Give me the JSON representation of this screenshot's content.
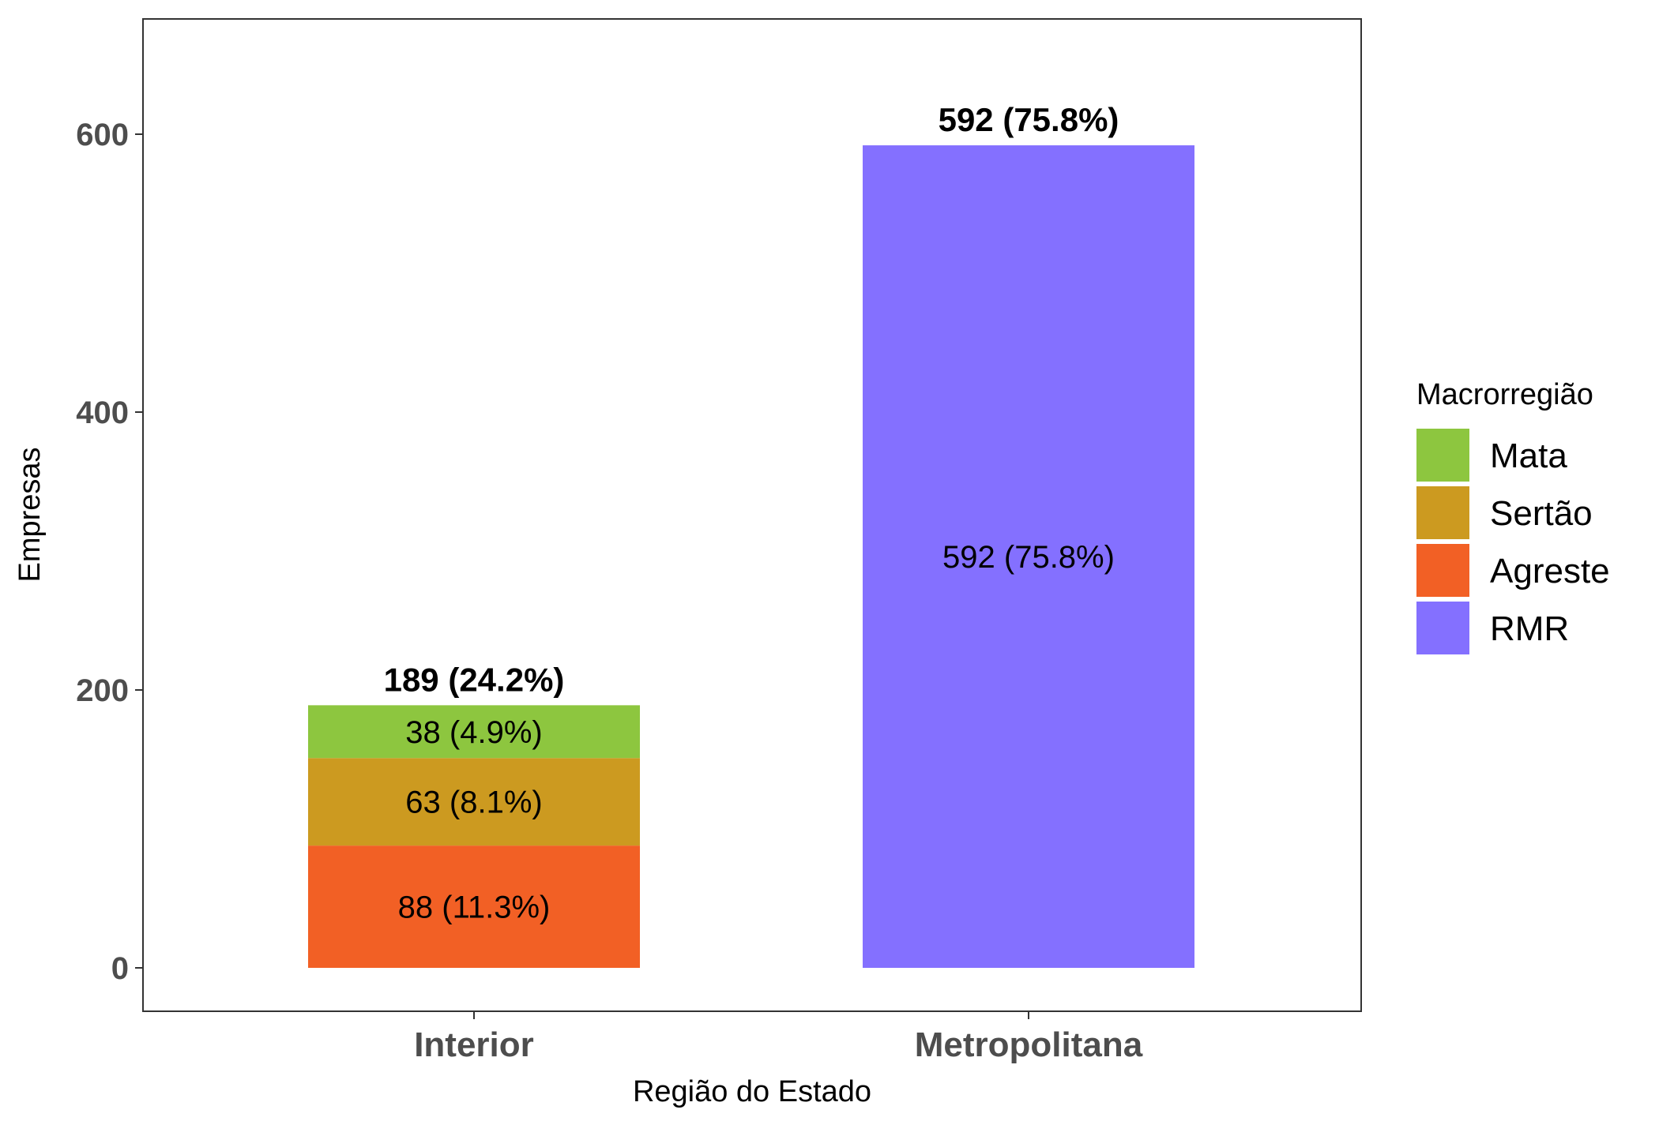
{
  "chart_data": {
    "type": "bar",
    "stacked": true,
    "categories": [
      "Interior",
      "Metropolitana"
    ],
    "series": [
      {
        "name": "Agreste",
        "color": "#f26025",
        "values": [
          88,
          0
        ],
        "labels": [
          "88 (11.3%)",
          ""
        ]
      },
      {
        "name": "Sertão",
        "color": "#cc9a20",
        "values": [
          63,
          0
        ],
        "labels": [
          "63 (8.1%)",
          ""
        ]
      },
      {
        "name": "Mata",
        "color": "#8dc63f",
        "values": [
          38,
          0
        ],
        "labels": [
          "38 (4.9%)",
          ""
        ]
      },
      {
        "name": "RMR",
        "color": "#8470ff",
        "values": [
          0,
          592
        ],
        "labels": [
          "",
          "592 (75.8%)"
        ]
      }
    ],
    "totals": [
      {
        "value": 189,
        "label": "189 (24.2%)"
      },
      {
        "value": 592,
        "label": "592 (75.8%)"
      }
    ],
    "xlabel": "Região do Estado",
    "ylabel": "Empresas",
    "ylim": [
      -31,
      682
    ],
    "yticks": [
      0,
      200,
      400,
      600
    ],
    "grid": false,
    "legend": {
      "title": "Macrorregião",
      "position": "right",
      "entries": [
        {
          "name": "Mata",
          "color": "#8dc63f"
        },
        {
          "name": "Sertão",
          "color": "#cc9a20"
        },
        {
          "name": "Agreste",
          "color": "#f26025"
        },
        {
          "name": "RMR",
          "color": "#8470ff"
        }
      ]
    }
  }
}
